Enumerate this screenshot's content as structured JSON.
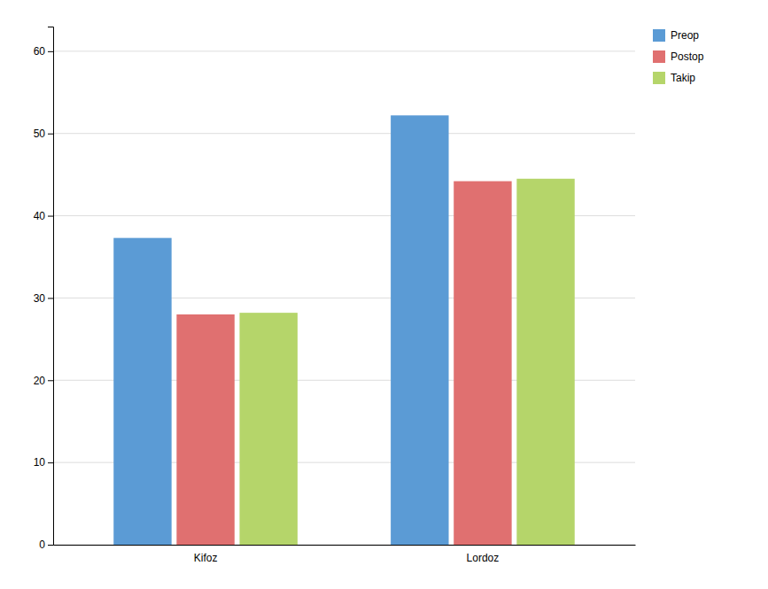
{
  "chart_data": {
    "type": "bar",
    "categories": [
      "Kifoz",
      "Lordoz"
    ],
    "series": [
      {
        "name": "Preop",
        "color": "#5B9BD5",
        "values": [
          37.3,
          52.2
        ]
      },
      {
        "name": "Postop",
        "color": "#E07070",
        "values": [
          28.0,
          44.2
        ]
      },
      {
        "name": "Takip",
        "color": "#B5D56A",
        "values": [
          28.2,
          44.5
        ]
      }
    ],
    "ylim": [
      0,
      63
    ],
    "yticks": [
      0,
      10,
      20,
      30,
      40,
      50,
      60
    ],
    "grid": true,
    "legend": "right"
  }
}
